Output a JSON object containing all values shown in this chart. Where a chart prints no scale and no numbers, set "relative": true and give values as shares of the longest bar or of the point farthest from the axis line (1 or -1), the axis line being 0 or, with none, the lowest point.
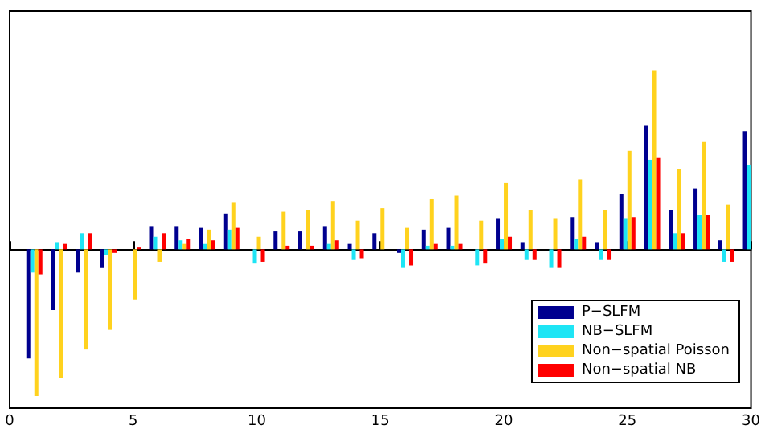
{
  "chart_data": {
    "type": "bar",
    "relative": true,
    "x": [
      1,
      2,
      3,
      4,
      5,
      6,
      7,
      8,
      9,
      10,
      11,
      12,
      13,
      14,
      15,
      16,
      17,
      18,
      19,
      20,
      21,
      22,
      23,
      24,
      25,
      26,
      27,
      28,
      29,
      30
    ],
    "xlim": [
      0,
      30
    ],
    "xticks": [
      0,
      5,
      10,
      15,
      20,
      25,
      30
    ],
    "legend": "bottom right",
    "series": [
      {
        "name": "P−SLFM",
        "color": "#00008f",
        "values": [
          -0.61,
          -0.34,
          -0.13,
          -0.1,
          0,
          0.13,
          0.13,
          0.12,
          0.2,
          0,
          0.1,
          0.1,
          0.13,
          0.03,
          0.09,
          -0.02,
          0.11,
          0.12,
          0,
          0.17,
          0.04,
          0,
          0.18,
          0.04,
          0.31,
          0.69,
          0.22,
          0.34,
          0.05,
          0.66
        ]
      },
      {
        "name": "NB−SLFM",
        "color": "#1ee5f5",
        "values": [
          -0.13,
          0.04,
          0.09,
          -0.03,
          0,
          0.07,
          0.05,
          0.03,
          0.11,
          -0.08,
          0,
          0,
          0.03,
          -0.06,
          0,
          -0.1,
          0.02,
          0.02,
          -0.09,
          0.06,
          -0.06,
          -0.1,
          0.06,
          -0.06,
          0.17,
          0.5,
          0.09,
          0.19,
          -0.07,
          0.47
        ]
      },
      {
        "name": "Non−spatial Poisson",
        "color": "#ffd21e",
        "values": [
          -0.82,
          -0.72,
          -0.56,
          -0.45,
          -0.28,
          -0.07,
          0.03,
          0.11,
          0.26,
          0.07,
          0.21,
          0.22,
          0.27,
          0.16,
          0.23,
          0.12,
          0.28,
          0.3,
          0.16,
          0.37,
          0.22,
          0.17,
          0.39,
          0.22,
          0.55,
          1.0,
          0.45,
          0.6,
          0.25,
          null
        ]
      },
      {
        "name": "Non−spatial NB",
        "color": "#ff0000",
        "values": [
          -0.14,
          0.03,
          0.09,
          -0.02,
          0.01,
          0.09,
          0.06,
          0.05,
          0.12,
          -0.07,
          0.02,
          0.02,
          0.05,
          -0.05,
          0,
          -0.09,
          0.03,
          0.03,
          -0.08,
          0.07,
          -0.06,
          -0.1,
          0.07,
          -0.06,
          0.18,
          0.51,
          0.09,
          0.19,
          -0.07,
          null
        ]
      }
    ]
  }
}
